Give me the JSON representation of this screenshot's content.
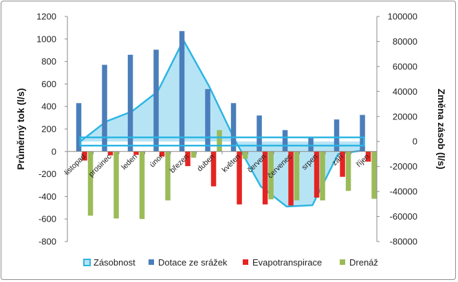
{
  "chart_data": {
    "type": "bar",
    "categories": [
      "listopad",
      "prosinec",
      "leden",
      "únor",
      "březen",
      "duben",
      "květen",
      "červen",
      "červenec",
      "srpen",
      "září",
      "říjen"
    ],
    "series": [
      {
        "name": "Zásobnost",
        "type": "area",
        "axis": "right",
        "color": "#2bb5e3",
        "fill": "#b7e4f5",
        "values": [
          0,
          16000,
          24000,
          40000,
          81000,
          44000,
          1000,
          -36000,
          -52000,
          -51000,
          -10000,
          -7000
        ]
      },
      {
        "name": "Dotace ze srážek",
        "type": "bar",
        "axis": "left",
        "color": "#4a7ebb",
        "values": [
          430,
          770,
          860,
          905,
          1070,
          555,
          430,
          320,
          190,
          130,
          285,
          325
        ]
      },
      {
        "name": "Evapotranspirace",
        "type": "bar",
        "axis": "left",
        "color": "#e52421",
        "values": [
          -80,
          -35,
          -30,
          -45,
          -130,
          -310,
          -470,
          -470,
          -480,
          -410,
          -225,
          -90
        ]
      },
      {
        "name": "Drenáž",
        "type": "bar",
        "axis": "left",
        "color": "#9bbb59",
        "values": [
          -570,
          -595,
          -600,
          -435,
          -55,
          190,
          -65,
          -425,
          -435,
          -435,
          -350,
          -420
        ]
      }
    ],
    "baseline_value": 0,
    "ylabel": "Průměrný tok (l/s)",
    "y2label": "Změna zásob (l/s)",
    "ylim": [
      -800,
      1200
    ],
    "y2lim": [
      -80000,
      100000
    ],
    "yticks": [
      "1200",
      "1000",
      "800",
      "600",
      "400",
      "200",
      "0",
      "-200",
      "-400",
      "-600",
      "-800"
    ],
    "y2ticks": [
      "100000",
      "80000",
      "60000",
      "40000",
      "20000",
      "0",
      "-20000",
      "-40000",
      "-60000",
      "-80000"
    ],
    "legend": [
      "Zásobnost",
      "Dotace ze srážek",
      "Evapotranspirace",
      "Drenáž"
    ],
    "legend_position": "bottom"
  }
}
